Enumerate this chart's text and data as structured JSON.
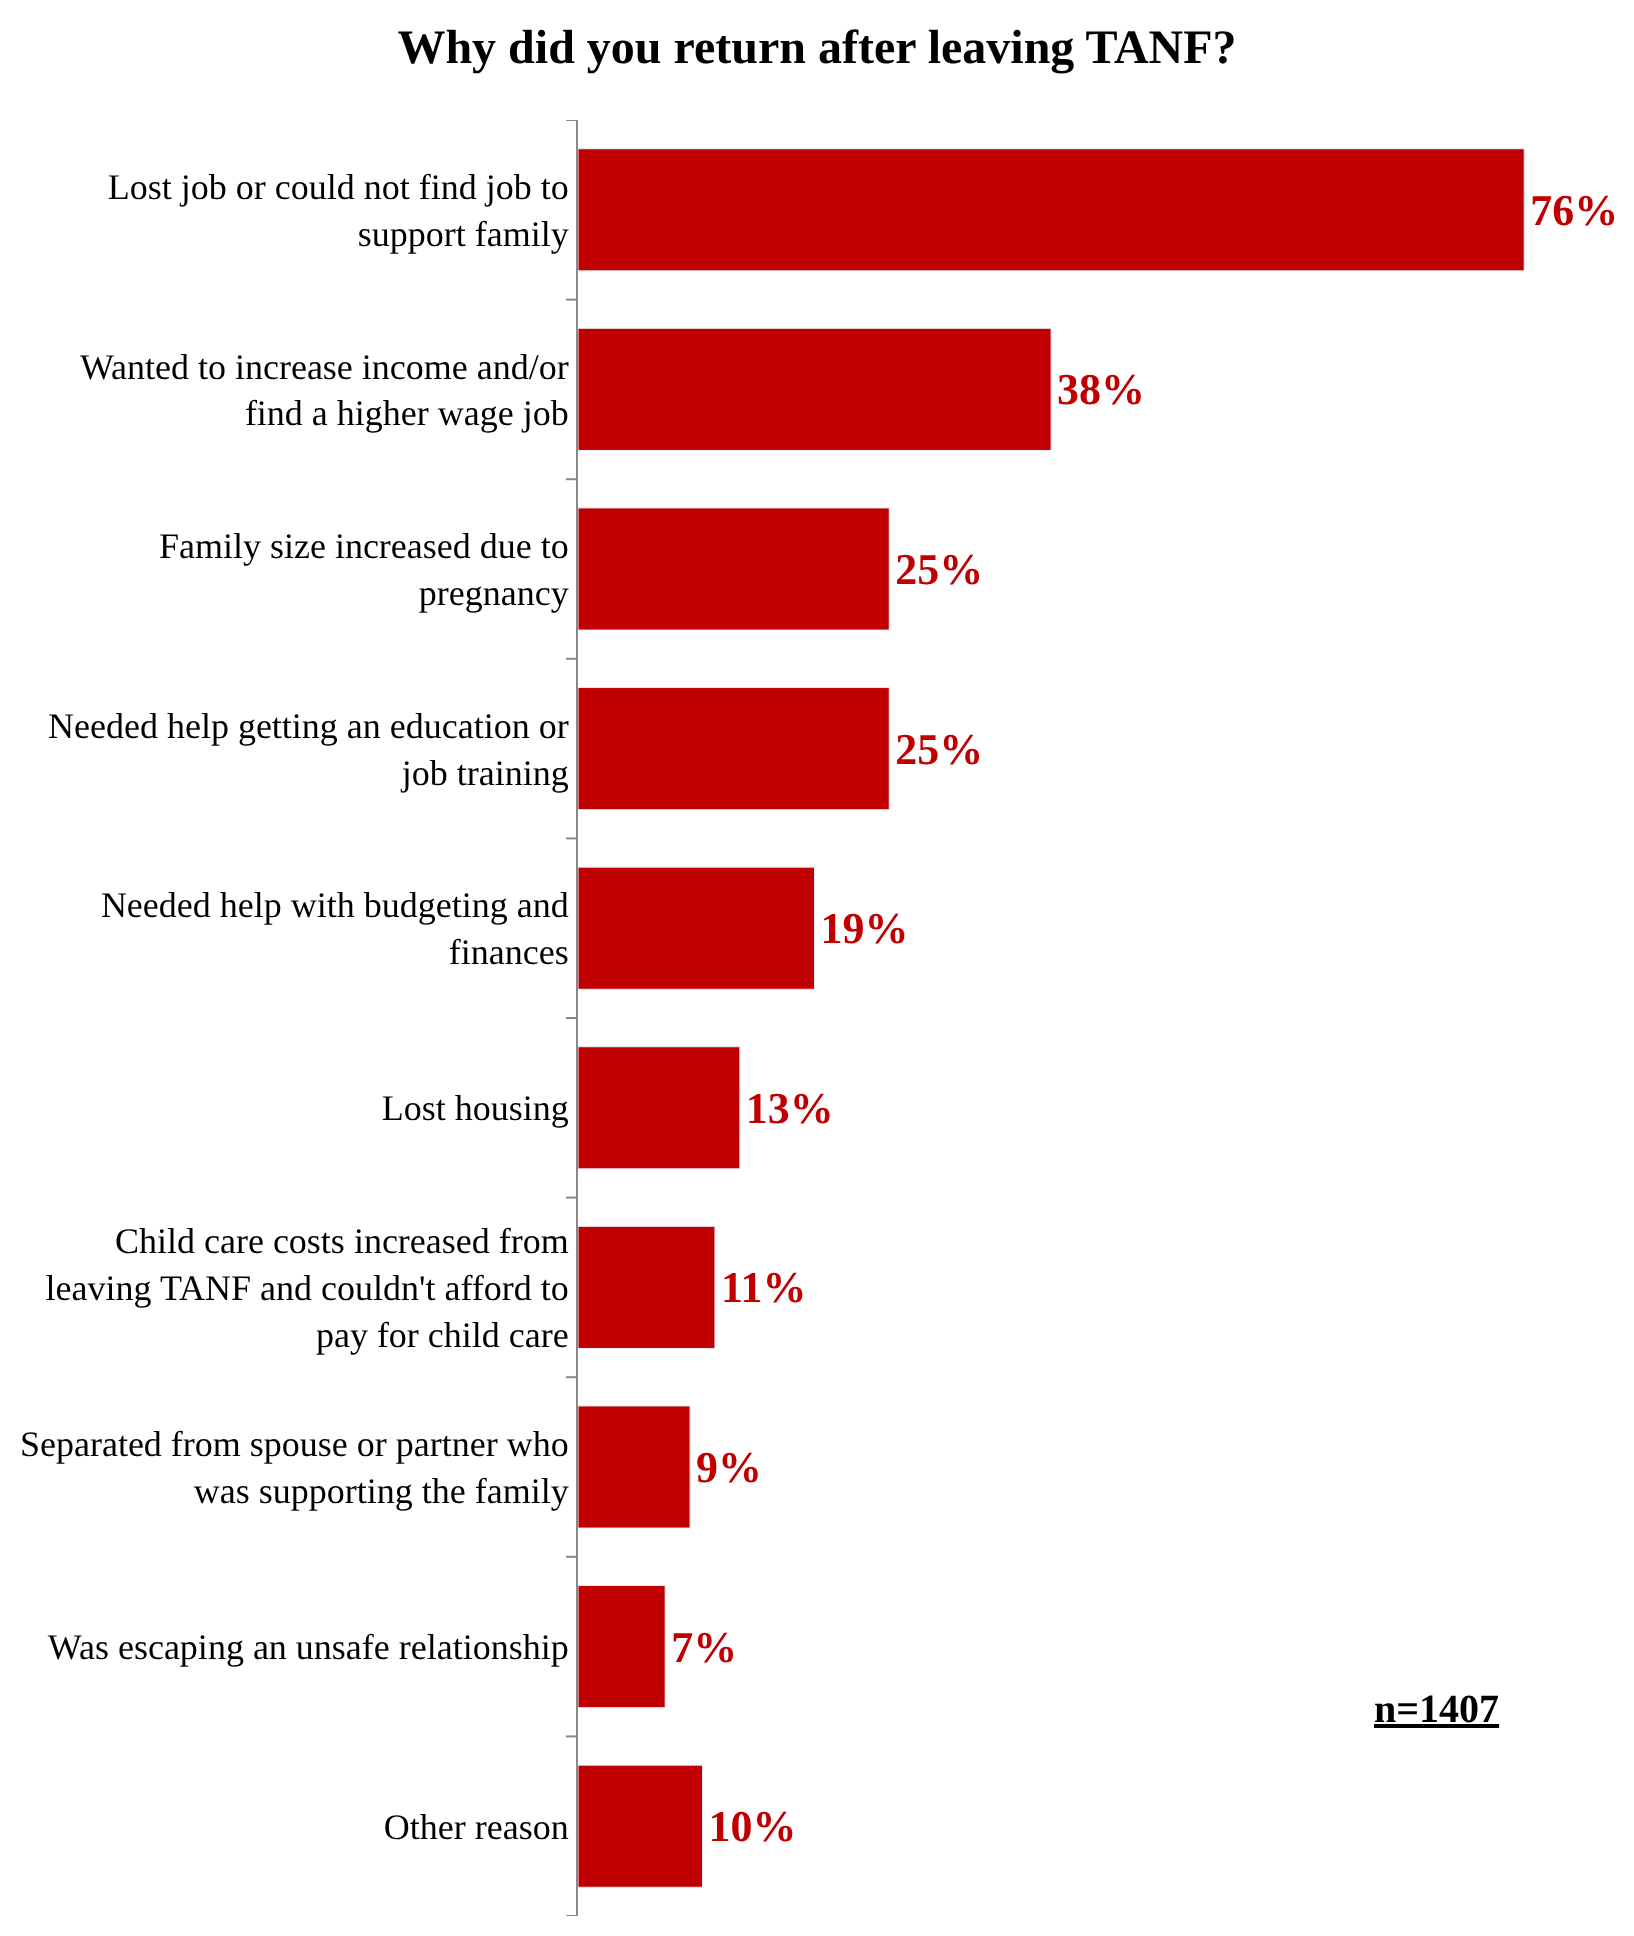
{
  "chart_data": {
    "type": "bar",
    "orientation": "horizontal",
    "title": "Why did you return after leaving TANF?",
    "categories": [
      "Lost job or could not find job to support family",
      "Wanted to increase income and/or find a higher wage job",
      "Family size increased due to pregnancy",
      "Needed help getting an education or job training",
      "Needed help with budgeting and finances",
      "Lost housing",
      "Child care costs increased from leaving TANF and couldn't afford to pay for child care",
      "Separated from spouse or partner who was supporting the family",
      "Was escaping an unsafe relationship",
      "Other reason"
    ],
    "values": [
      76,
      38,
      25,
      25,
      19,
      13,
      11,
      9,
      7,
      10
    ],
    "value_labels": [
      "76%",
      "38%",
      "25%",
      "25%",
      "19%",
      "13%",
      "11%",
      "9%",
      "7%",
      "10%"
    ],
    "color": "#c00000",
    "annotations": [
      "n=1407"
    ]
  }
}
